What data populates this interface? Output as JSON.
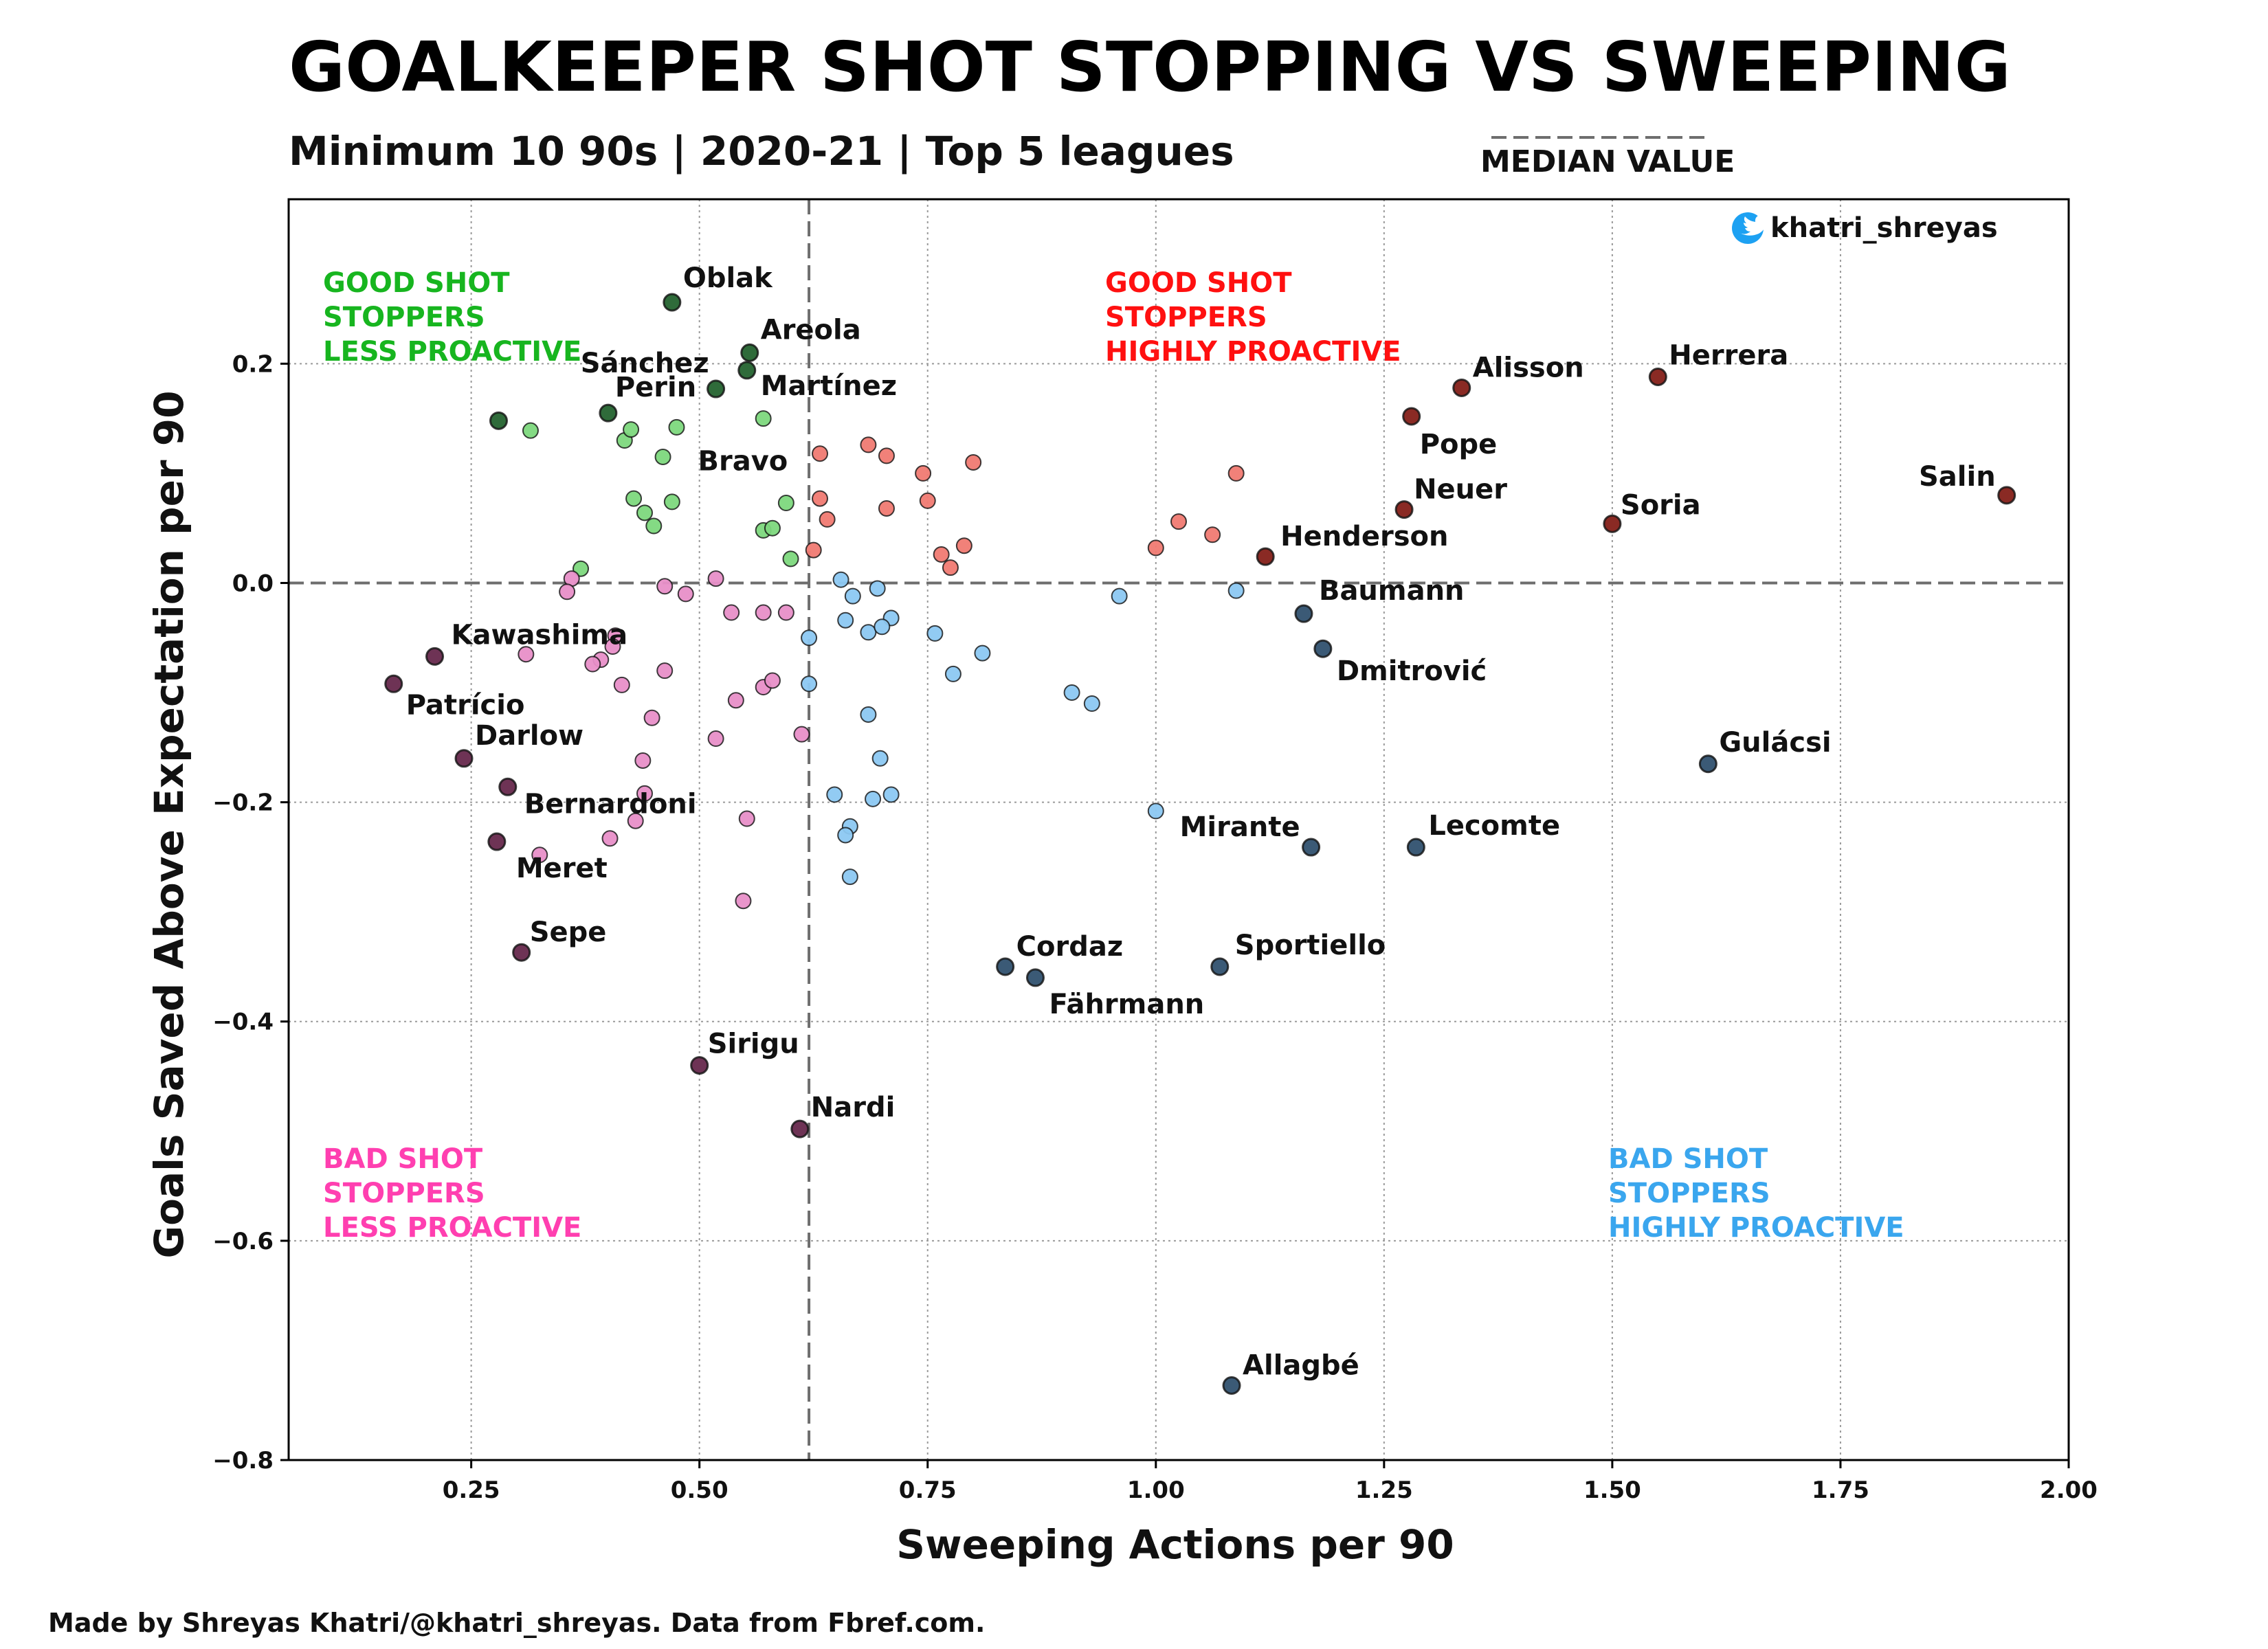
{
  "header": {
    "title": "GOALKEEPER SHOT STOPPING VS SWEEPING",
    "subtitle": "Minimum 10 90s | 2020-21 | Top 5 leagues",
    "median_legend": "MEDIAN VALUE"
  },
  "twitter": {
    "handle": "khatri_shreyas",
    "icon": "twitter-bird-icon",
    "icon_color": "#1DA1F2"
  },
  "footer": {
    "credit": "Made by Shreyas Khatri/@khatri_shreyas. Data from Fbref.com."
  },
  "quadrants": {
    "top_left": {
      "lines": [
        "GOOD SHOT",
        "STOPPERS",
        "LESS PROACTIVE"
      ],
      "color": "#17b51f"
    },
    "top_right": {
      "lines": [
        "GOOD SHOT",
        "STOPPERS",
        "HIGHLY PROACTIVE"
      ],
      "color": "#ff1010"
    },
    "bottom_left": {
      "lines": [
        "BAD SHOT",
        "STOPPERS",
        "LESS PROACTIVE"
      ],
      "color": "#ff3fb0"
    },
    "bottom_right": {
      "lines": [
        "BAD SHOT",
        "STOPPERS",
        "HIGHLY PROACTIVE"
      ],
      "color": "#3aa6ee"
    }
  },
  "chart_data": {
    "type": "scatter",
    "title": "GOALKEEPER SHOT STOPPING VS SWEEPING",
    "subtitle": "Minimum 10 90s | 2020-21 | Top 5 leagues",
    "xlabel": "Sweeping Actions per 90",
    "ylabel": "Goals Saved Above Expectation per 90",
    "xlim": [
      0.05,
      2.0
    ],
    "ylim": [
      -0.8,
      0.35
    ],
    "xticks": [
      0.25,
      0.5,
      0.75,
      1.0,
      1.25,
      1.5,
      1.75,
      2.0
    ],
    "xtick_labels": [
      "0.25",
      "0.50",
      "0.75",
      "1.00",
      "1.25",
      "1.50",
      "1.75",
      "2.00"
    ],
    "yticks": [
      0.2,
      0.0,
      -0.2,
      -0.4,
      -0.6,
      -0.8
    ],
    "ytick_labels": [
      "0.2",
      "0.0",
      "−0.2",
      "−0.4",
      "−0.6",
      "−0.8"
    ],
    "grid": true,
    "median_x": 0.62,
    "median_y": 0.0,
    "colors": {
      "good_less": "#7dd87d",
      "good_less_dark": "#2f6b3a",
      "good_high": "#f07a72",
      "good_high_dark": "#8a2a24",
      "bad_less": "#e88fc8",
      "bad_less_dark": "#6e3355",
      "bad_high": "#8cc8f2",
      "bad_high_dark": "#3b5a76"
    },
    "series": [
      {
        "group": "good_less",
        "points": [
          {
            "x": 0.47,
            "y": 0.256,
            "label": "Oblak"
          },
          {
            "x": 0.555,
            "y": 0.21,
            "label": "Areola"
          },
          {
            "x": 0.518,
            "y": 0.177,
            "label": "Sánchez"
          },
          {
            "x": 0.552,
            "y": 0.194,
            "label": "Martínez"
          },
          {
            "x": 0.4,
            "y": 0.155,
            "label": "Perin"
          },
          {
            "x": 0.28,
            "y": 0.148,
            "label": "Bravo"
          },
          {
            "x": 0.315,
            "y": 0.139
          },
          {
            "x": 0.418,
            "y": 0.13
          },
          {
            "x": 0.425,
            "y": 0.14
          },
          {
            "x": 0.475,
            "y": 0.142
          },
          {
            "x": 0.57,
            "y": 0.15
          },
          {
            "x": 0.46,
            "y": 0.115
          },
          {
            "x": 0.428,
            "y": 0.077
          },
          {
            "x": 0.44,
            "y": 0.064
          },
          {
            "x": 0.45,
            "y": 0.052
          },
          {
            "x": 0.47,
            "y": 0.074
          },
          {
            "x": 0.57,
            "y": 0.048
          },
          {
            "x": 0.58,
            "y": 0.05
          },
          {
            "x": 0.595,
            "y": 0.073
          },
          {
            "x": 0.6,
            "y": 0.022
          },
          {
            "x": 0.37,
            "y": 0.013
          }
        ]
      },
      {
        "group": "good_high",
        "points": [
          {
            "x": 1.335,
            "y": 0.178,
            "label": "Alisson"
          },
          {
            "x": 1.55,
            "y": 0.188,
            "label": "Herrera"
          },
          {
            "x": 1.28,
            "y": 0.152,
            "label": "Pope"
          },
          {
            "x": 1.932,
            "y": 0.08,
            "label": "Salin"
          },
          {
            "x": 1.272,
            "y": 0.067,
            "label": "Neuer"
          },
          {
            "x": 1.5,
            "y": 0.054,
            "label": "Soria"
          },
          {
            "x": 1.12,
            "y": 0.024,
            "label": "Henderson"
          },
          {
            "x": 0.632,
            "y": 0.118
          },
          {
            "x": 0.685,
            "y": 0.126
          },
          {
            "x": 0.705,
            "y": 0.116
          },
          {
            "x": 0.745,
            "y": 0.1
          },
          {
            "x": 0.8,
            "y": 0.11
          },
          {
            "x": 0.632,
            "y": 0.077
          },
          {
            "x": 0.705,
            "y": 0.068
          },
          {
            "x": 0.75,
            "y": 0.075
          },
          {
            "x": 0.64,
            "y": 0.058
          },
          {
            "x": 0.79,
            "y": 0.034
          },
          {
            "x": 0.765,
            "y": 0.026
          },
          {
            "x": 0.775,
            "y": 0.014
          },
          {
            "x": 0.625,
            "y": 0.03
          },
          {
            "x": 1.0,
            "y": 0.032
          },
          {
            "x": 1.025,
            "y": 0.056
          },
          {
            "x": 1.062,
            "y": 0.044
          },
          {
            "x": 1.088,
            "y": 0.1
          }
        ]
      },
      {
        "group": "bad_less",
        "points": [
          {
            "x": 0.21,
            "y": -0.067,
            "label": "Kawashima"
          },
          {
            "x": 0.165,
            "y": -0.092,
            "label": "Patrício"
          },
          {
            "x": 0.242,
            "y": -0.16,
            "label": "Darlow"
          },
          {
            "x": 0.29,
            "y": -0.186,
            "label": "Bernardoni"
          },
          {
            "x": 0.278,
            "y": -0.236,
            "label": "Meret"
          },
          {
            "x": 0.305,
            "y": -0.337,
            "label": "Sepe"
          },
          {
            "x": 0.5,
            "y": -0.44,
            "label": "Sirigu"
          },
          {
            "x": 0.61,
            "y": -0.498,
            "label": "Nardi"
          },
          {
            "x": 0.36,
            "y": 0.004
          },
          {
            "x": 0.355,
            "y": -0.008
          },
          {
            "x": 0.518,
            "y": 0.004
          },
          {
            "x": 0.462,
            "y": -0.003
          },
          {
            "x": 0.485,
            "y": -0.01
          },
          {
            "x": 0.535,
            "y": -0.027
          },
          {
            "x": 0.57,
            "y": -0.027
          },
          {
            "x": 0.595,
            "y": -0.027
          },
          {
            "x": 0.31,
            "y": -0.065
          },
          {
            "x": 0.408,
            "y": -0.048
          },
          {
            "x": 0.405,
            "y": -0.058
          },
          {
            "x": 0.392,
            "y": -0.07
          },
          {
            "x": 0.383,
            "y": -0.074
          },
          {
            "x": 0.415,
            "y": -0.093
          },
          {
            "x": 0.462,
            "y": -0.08
          },
          {
            "x": 0.57,
            "y": -0.095
          },
          {
            "x": 0.58,
            "y": -0.089
          },
          {
            "x": 0.54,
            "y": -0.107
          },
          {
            "x": 0.448,
            "y": -0.123
          },
          {
            "x": 0.518,
            "y": -0.142
          },
          {
            "x": 0.612,
            "y": -0.138
          },
          {
            "x": 0.438,
            "y": -0.162
          },
          {
            "x": 0.44,
            "y": -0.192
          },
          {
            "x": 0.43,
            "y": -0.217
          },
          {
            "x": 0.402,
            "y": -0.233
          },
          {
            "x": 0.325,
            "y": -0.248
          },
          {
            "x": 0.552,
            "y": -0.215
          },
          {
            "x": 0.548,
            "y": -0.29
          }
        ]
      },
      {
        "group": "bad_high",
        "points": [
          {
            "x": 1.162,
            "y": -0.028,
            "label": "Baumann"
          },
          {
            "x": 1.183,
            "y": -0.06,
            "label": "Dmitrović"
          },
          {
            "x": 1.605,
            "y": -0.165,
            "label": "Gulácsi"
          },
          {
            "x": 1.17,
            "y": -0.241,
            "label": "Mirante"
          },
          {
            "x": 1.285,
            "y": -0.241,
            "label": "Lecomte"
          },
          {
            "x": 0.835,
            "y": -0.35,
            "label": "Cordaz"
          },
          {
            "x": 0.868,
            "y": -0.36,
            "label": "Fährmann"
          },
          {
            "x": 1.07,
            "y": -0.35,
            "label": "Sportiello"
          },
          {
            "x": 1.083,
            "y": -0.732,
            "label": "Allagbé"
          },
          {
            "x": 0.655,
            "y": 0.003
          },
          {
            "x": 0.695,
            "y": -0.005
          },
          {
            "x": 0.668,
            "y": -0.012
          },
          {
            "x": 0.96,
            "y": -0.012
          },
          {
            "x": 1.088,
            "y": -0.007
          },
          {
            "x": 0.66,
            "y": -0.034
          },
          {
            "x": 0.71,
            "y": -0.032
          },
          {
            "x": 0.685,
            "y": -0.045
          },
          {
            "x": 0.7,
            "y": -0.04
          },
          {
            "x": 0.62,
            "y": -0.05
          },
          {
            "x": 0.758,
            "y": -0.046
          },
          {
            "x": 0.81,
            "y": -0.064
          },
          {
            "x": 0.778,
            "y": -0.083
          },
          {
            "x": 0.62,
            "y": -0.092
          },
          {
            "x": 0.908,
            "y": -0.1
          },
          {
            "x": 0.93,
            "y": -0.11
          },
          {
            "x": 0.685,
            "y": -0.12
          },
          {
            "x": 0.698,
            "y": -0.16
          },
          {
            "x": 0.648,
            "y": -0.193
          },
          {
            "x": 0.69,
            "y": -0.197
          },
          {
            "x": 0.71,
            "y": -0.193
          },
          {
            "x": 1.0,
            "y": -0.208
          },
          {
            "x": 0.665,
            "y": -0.222
          },
          {
            "x": 0.66,
            "y": -0.23
          },
          {
            "x": 0.665,
            "y": -0.268
          }
        ]
      }
    ]
  }
}
